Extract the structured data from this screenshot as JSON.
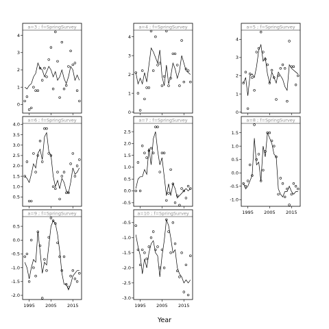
{
  "chart_data": {
    "type": "scatter",
    "xlabel": "Year",
    "ylabel": "",
    "grid": false,
    "layout": {
      "rows": 3,
      "cols": 3
    },
    "x_ticks": [
      1995,
      2005,
      2015
    ],
    "xlim": [
      1992,
      2019
    ],
    "panels": [
      {
        "strip": "a=3 ; f=SpringSurvey",
        "ylim": [
          -0.5,
          4.3
        ],
        "yticks": [
          0,
          1,
          2,
          3,
          4
        ],
        "x": [
          1993,
          1994,
          1995,
          1996,
          1997,
          1998,
          1999,
          2000,
          2001,
          2002,
          2003,
          2004,
          2005,
          2006,
          2007,
          2008,
          2009,
          2010,
          2011,
          2012,
          2013,
          2014,
          2015,
          2016,
          2017,
          2018
        ],
        "points": [
          0.2,
          0.45,
          -0.3,
          -0.2,
          1.0,
          0.8,
          0.8,
          2.1,
          1.4,
          2.1,
          1.6,
          2.6,
          3.3,
          0.9,
          4.2,
          2.5,
          0.4,
          3.6,
          0.9,
          1.1,
          2.2,
          3.1,
          2.3,
          2.4,
          0.8,
          0.2
        ],
        "line": [
          1.0,
          0.9,
          1.1,
          1.2,
          1.6,
          1.8,
          2.4,
          2.1,
          2.0,
          1.6,
          1.9,
          2.2,
          2.0,
          1.6,
          1.9,
          1.4,
          1.6,
          2.0,
          1.5,
          1.2,
          1.6,
          2.2,
          2.0,
          1.4,
          1.7,
          1.4
        ]
      },
      {
        "strip": "a=6 ; f=SpringSurvey",
        "ylim": [
          0.05,
          4.05
        ],
        "yticks": [
          0.5,
          1.0,
          1.5,
          2.0,
          2.5,
          3.0,
          3.5,
          4.0
        ],
        "x": [
          1993,
          1994,
          1995,
          1996,
          1997,
          1998,
          1999,
          2000,
          2001,
          2002,
          2003,
          2004,
          2005,
          2006,
          2007,
          2008,
          2009,
          2010,
          2011,
          2012,
          2013,
          2014,
          2015,
          2016,
          2017,
          2018
        ],
        "points": [
          1.5,
          2.2,
          0.3,
          0.3,
          2.6,
          1.7,
          2.5,
          3.2,
          2.2,
          3.8,
          3.8,
          2.6,
          2.5,
          1.0,
          0.9,
          1.7,
          0.4,
          1.5,
          1.7,
          0.7,
          0.7,
          2.1,
          2.6,
          1.5,
          2.0,
          2.3
        ],
        "line": [
          1.5,
          1.4,
          1.2,
          1.6,
          2.1,
          1.9,
          2.6,
          2.8,
          2.3,
          3.4,
          3.6,
          2.7,
          2.5,
          1.5,
          1.0,
          1.3,
          0.9,
          1.4,
          1.2,
          0.8,
          0.7,
          1.2,
          1.9,
          1.6,
          1.7,
          1.9
        ]
      },
      {
        "strip": "a=9 ; f=SpringSurvey",
        "ylim": [
          -2.15,
          0.85
        ],
        "yticks": [
          -2.0,
          -1.5,
          -1.0,
          -0.5,
          0.0,
          0.5
        ],
        "x": [
          1993,
          1994,
          1995,
          1996,
          1997,
          1998,
          1999,
          2000,
          2001,
          2002,
          2003,
          2004,
          2005,
          2006,
          2007,
          2008,
          2009,
          2010,
          2011,
          2012,
          2013,
          2014,
          2015,
          2016,
          2017,
          2018
        ],
        "points": [
          -0.6,
          -0.5,
          -1.5,
          0.0,
          -1.0,
          -1.3,
          0.3,
          -0.2,
          -2.1,
          -0.7,
          -1.1,
          0.1,
          0.8,
          0.7,
          0.6,
          -0.1,
          -0.6,
          -1.1,
          -0.6,
          -1.6,
          -1.7,
          -1.3,
          -1.1,
          -1.4,
          -1.5,
          -1.2
        ],
        "line": [
          -0.8,
          -1.0,
          -1.4,
          -1.0,
          -0.7,
          -0.8,
          0.3,
          -0.4,
          -1.2,
          -0.8,
          -0.9,
          -0.2,
          0.5,
          0.7,
          0.6,
          0.2,
          -0.4,
          -1.2,
          -1.6,
          -1.6,
          -1.8,
          -1.6,
          -1.3,
          -1.2,
          -1.1,
          -1.1
        ]
      },
      {
        "strip": "a=4 ; f=SpringSurvey",
        "ylim": [
          -0.05,
          4.35
        ],
        "yticks": [
          0,
          1,
          2,
          3,
          4
        ],
        "x": [
          1993,
          1994,
          1995,
          1996,
          1997,
          1998,
          1999,
          2000,
          2001,
          2002,
          2003,
          2004,
          2005,
          2006,
          2007,
          2008,
          2009,
          2010,
          2011,
          2012,
          2013,
          2014,
          2015,
          2016,
          2017,
          2018
        ],
        "points": [
          2.1,
          1.0,
          0.1,
          2.2,
          0.7,
          1.3,
          1.3,
          4.3,
          2.2,
          4.0,
          2.5,
          2.6,
          1.4,
          1.9,
          4.3,
          1.4,
          1.8,
          3.1,
          3.1,
          2.5,
          1.4,
          3.8,
          1.6,
          2.3,
          2.2,
          1.6
        ],
        "line": [
          2.1,
          1.5,
          1.8,
          1.5,
          2.1,
          1.6,
          2.5,
          3.4,
          3.2,
          2.9,
          2.6,
          3.3,
          1.9,
          1.4,
          2.5,
          1.5,
          1.9,
          2.6,
          2.3,
          1.8,
          2.2,
          3.0,
          2.6,
          2.2,
          2.1,
          2.0
        ]
      },
      {
        "strip": "a=7 ; f=SpringSurvey",
        "ylim": [
          -0.65,
          2.85
        ],
        "yticks": [
          -0.5,
          0.0,
          0.5,
          1.0,
          1.5,
          2.0,
          2.5
        ],
        "x": [
          1993,
          1994,
          1995,
          1996,
          1997,
          1998,
          1999,
          2000,
          2001,
          2002,
          2003,
          2004,
          2005,
          2006,
          2007,
          2008,
          2009,
          2010,
          2011,
          2012,
          2013,
          2014,
          2015,
          2016,
          2017,
          2018
        ],
        "points": [
          0.0,
          1.2,
          0.0,
          1.9,
          1.6,
          1.4,
          1.7,
          1.8,
          1.6,
          2.7,
          2.7,
          0.8,
          1.6,
          1.6,
          -0.4,
          -0.1,
          0.9,
          0.3,
          -0.5,
          -0.2,
          -0.6,
          0.1,
          0.0,
          -0.3,
          0.2,
          0.1
        ],
        "line": [
          0.1,
          0.5,
          0.6,
          0.6,
          0.9,
          0.7,
          1.8,
          1.1,
          2.2,
          2.5,
          1.7,
          1.1,
          1.4,
          0.6,
          -0.2,
          0.3,
          -0.2,
          0.3,
          0.1,
          -0.3,
          -0.2,
          -0.1,
          0.0,
          0.1,
          0.0,
          0.1
        ]
      },
      {
        "strip": "a=10 ; f=SpringSurvey",
        "ylim": [
          -3.05,
          -0.3
        ],
        "yticks": [
          -3.0,
          -2.5,
          -2.0,
          -1.5,
          -1.0,
          -0.5
        ],
        "x": [
          1993,
          1994,
          1995,
          1996,
          1997,
          1998,
          1999,
          2000,
          2001,
          2002,
          2003,
          2004,
          2005,
          2006,
          2007,
          2008,
          2009,
          2010,
          2011,
          2012,
          2013,
          2014,
          2015,
          2016,
          2017,
          2018
        ],
        "points": [
          -0.6,
          -1.4,
          -1.9,
          -1.4,
          -1.5,
          -1.7,
          -1.3,
          -1.0,
          -0.8,
          -1.4,
          -1.3,
          -2.0,
          -1.4,
          -2.0,
          -0.4,
          -0.8,
          -1.5,
          -0.5,
          -1.2,
          -2.1,
          -2.3,
          -1.5,
          -2.8,
          -1.9,
          -2.9,
          -1.6
        ],
        "line": [
          -0.9,
          -1.3,
          -1.6,
          -2.2,
          -1.7,
          -2.0,
          -1.5,
          -1.2,
          -1.1,
          -1.5,
          -1.6,
          -2.3,
          -1.6,
          -1.1,
          -0.4,
          -0.6,
          -1.0,
          -1.5,
          -1.4,
          -2.0,
          -2.2,
          -2.3,
          -2.5,
          -2.4,
          -2.5,
          -2.4
        ]
      },
      {
        "strip": "a=5 ; f=SpringSurvey",
        "ylim": [
          -0.05,
          4.5
        ],
        "yticks": [
          0,
          1,
          2,
          3,
          4
        ],
        "x": [
          1993,
          1994,
          1995,
          1996,
          1997,
          1998,
          1999,
          2000,
          2001,
          2002,
          2003,
          2004,
          2005,
          2006,
          2007,
          2008,
          2009,
          2010,
          2011,
          2012,
          2013,
          2014,
          2015,
          2016,
          2017,
          2018
        ],
        "points": [
          1.6,
          2.2,
          0.2,
          2.1,
          1.9,
          1.2,
          3.3,
          3.5,
          4.4,
          3.3,
          2.9,
          2.6,
          1.6,
          2.3,
          1.9,
          0.7,
          2.0,
          2.4,
          2.6,
          2.4,
          0.6,
          3.9,
          2.5,
          2.5,
          1.5,
          2.0
        ],
        "line": [
          1.6,
          1.9,
          0.9,
          2.0,
          2.1,
          1.9,
          2.5,
          3.4,
          3.7,
          2.8,
          3.0,
          2.1,
          1.6,
          2.2,
          1.9,
          1.6,
          2.2,
          2.0,
          1.8,
          1.4,
          1.2,
          2.6,
          2.4,
          2.3,
          2.2,
          2.1
        ]
      },
      {
        "strip": "a=8 ; f=SpringSurvey",
        "ylim": [
          -1.25,
          1.85
        ],
        "yticks": [
          -1.0,
          -0.5,
          0.0,
          0.5,
          1.0,
          1.5
        ],
        "x": [
          1993,
          1994,
          1995,
          1996,
          1997,
          1998,
          1999,
          2000,
          2001,
          2002,
          2003,
          2004,
          2005,
          2006,
          2007,
          2008,
          2009,
          2010,
          2011,
          2012,
          2013,
          2014,
          2015,
          2016,
          2017,
          2018
        ],
        "points": [
          -0.4,
          -0.5,
          -0.3,
          0.3,
          -0.1,
          1.8,
          0.5,
          0.7,
          -0.3,
          0.1,
          0.8,
          1.5,
          1.5,
          1.2,
          1.0,
          0.6,
          -0.8,
          -0.2,
          -0.4,
          -0.9,
          -0.6,
          -1.2,
          -0.8,
          -0.4,
          -0.5,
          -0.6
        ],
        "line": [
          -0.4,
          -0.6,
          -0.5,
          -0.3,
          -0.1,
          1.3,
          0.3,
          0.4,
          -0.3,
          1.0,
          0.6,
          1.5,
          1.3,
          1.1,
          0.7,
          0.6,
          -0.6,
          -0.8,
          -0.9,
          -0.7,
          -0.7,
          -0.5,
          -0.7,
          -0.8,
          -0.7,
          -0.7
        ]
      }
    ]
  }
}
